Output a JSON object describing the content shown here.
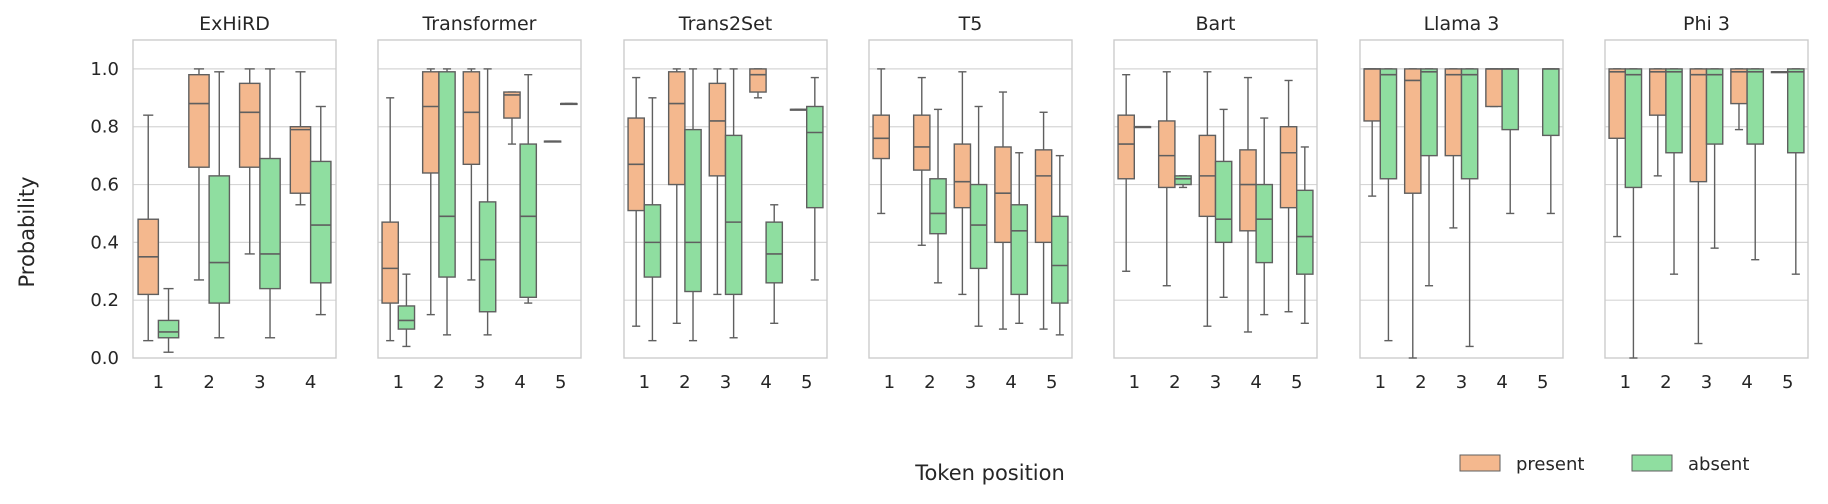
{
  "chart_data": {
    "type": "box",
    "ylabel": "Probability",
    "xlabel": "Token position",
    "ylim": [
      0.0,
      1.1
    ],
    "yticks": [
      "0.0",
      "0.2",
      "0.4",
      "0.6",
      "0.8",
      "1.0"
    ],
    "grid": "horizontal",
    "legend": {
      "placement": "bottom-right",
      "entries": [
        {
          "label": "present",
          "color": "#f4b88e"
        },
        {
          "label": "absent",
          "color": "#8fdea0"
        }
      ]
    },
    "panels": [
      {
        "title": "ExHiRD",
        "positions": [
          "1",
          "2",
          "3",
          "4"
        ],
        "present": [
          [
            0.06,
            0.22,
            0.35,
            0.48,
            0.84
          ],
          [
            0.27,
            0.66,
            0.88,
            0.98,
            1.0
          ],
          [
            0.36,
            0.66,
            0.85,
            0.95,
            1.0
          ],
          [
            0.53,
            0.57,
            0.79,
            0.8,
            0.99
          ]
        ],
        "absent": [
          [
            0.02,
            0.07,
            0.09,
            0.13,
            0.24
          ],
          [
            0.07,
            0.19,
            0.33,
            0.63,
            0.99
          ],
          [
            0.07,
            0.24,
            0.36,
            0.69,
            1.0
          ],
          [
            0.15,
            0.26,
            0.46,
            0.68,
            0.87
          ]
        ]
      },
      {
        "title": "Transformer",
        "positions": [
          "1",
          "2",
          "3",
          "4",
          "5"
        ],
        "present": [
          [
            0.06,
            0.19,
            0.31,
            0.47,
            0.9
          ],
          [
            0.15,
            0.64,
            0.87,
            0.99,
            1.0
          ],
          [
            0.27,
            0.67,
            0.85,
            0.99,
            1.0
          ],
          [
            0.74,
            0.83,
            0.91,
            0.92,
            0.92
          ],
          [
            0.75,
            0.75,
            0.75,
            0.75,
            0.75
          ]
        ],
        "absent": [
          [
            0.04,
            0.1,
            0.13,
            0.18,
            0.29
          ],
          [
            0.08,
            0.28,
            0.49,
            0.99,
            1.0
          ],
          [
            0.08,
            0.16,
            0.34,
            0.54,
            1.0
          ],
          [
            0.19,
            0.21,
            0.49,
            0.74,
            0.98
          ],
          [
            0.88,
            0.88,
            0.88,
            0.88,
            0.88
          ]
        ]
      },
      {
        "title": "Trans2Set",
        "positions": [
          "1",
          "2",
          "3",
          "4",
          "5"
        ],
        "present": [
          [
            0.11,
            0.51,
            0.67,
            0.83,
            0.97
          ],
          [
            0.12,
            0.6,
            0.88,
            0.99,
            1.0
          ],
          [
            0.22,
            0.63,
            0.82,
            0.95,
            1.0
          ],
          [
            0.9,
            0.92,
            0.98,
            1.0,
            1.0
          ],
          [
            0.86,
            0.86,
            0.86,
            0.86,
            0.86
          ]
        ],
        "absent": [
          [
            0.06,
            0.28,
            0.4,
            0.53,
            0.9
          ],
          [
            0.06,
            0.23,
            0.4,
            0.79,
            1.0
          ],
          [
            0.07,
            0.22,
            0.47,
            0.77,
            1.0
          ],
          [
            0.12,
            0.26,
            0.36,
            0.47,
            0.53
          ],
          [
            0.27,
            0.52,
            0.78,
            0.87,
            0.97
          ]
        ]
      },
      {
        "title": "T5",
        "positions": [
          "1",
          "2",
          "3",
          "4",
          "5"
        ],
        "present": [
          [
            0.5,
            0.69,
            0.76,
            0.84,
            1.0
          ],
          [
            0.39,
            0.65,
            0.73,
            0.84,
            0.97
          ],
          [
            0.22,
            0.52,
            0.61,
            0.74,
            0.99
          ],
          [
            0.1,
            0.4,
            0.57,
            0.73,
            0.92
          ],
          [
            0.1,
            0.4,
            0.63,
            0.72,
            0.85
          ]
        ],
        "absent": [
          [],
          [
            0.26,
            0.43,
            0.5,
            0.62,
            0.86
          ],
          [
            0.11,
            0.31,
            0.46,
            0.6,
            0.87
          ],
          [
            0.12,
            0.22,
            0.44,
            0.53,
            0.71
          ],
          [
            0.08,
            0.19,
            0.32,
            0.49,
            0.7
          ]
        ]
      },
      {
        "title": "Bart",
        "positions": [
          "1",
          "2",
          "3",
          "4",
          "5"
        ],
        "present": [
          [
            0.3,
            0.62,
            0.74,
            0.84,
            0.98
          ],
          [
            0.25,
            0.59,
            0.7,
            0.82,
            0.99
          ],
          [
            0.11,
            0.49,
            0.63,
            0.77,
            0.99
          ],
          [
            0.09,
            0.44,
            0.6,
            0.72,
            0.97
          ],
          [
            0.16,
            0.52,
            0.71,
            0.8,
            0.96
          ]
        ],
        "absent": [
          [
            0.8,
            0.8,
            0.8,
            0.8,
            0.8
          ],
          [
            0.59,
            0.6,
            0.62,
            0.63,
            0.63
          ],
          [
            0.21,
            0.4,
            0.48,
            0.68,
            0.86
          ],
          [
            0.15,
            0.33,
            0.48,
            0.6,
            0.83
          ],
          [
            0.12,
            0.29,
            0.42,
            0.58,
            0.73
          ]
        ]
      },
      {
        "title": "Llama 3",
        "positions": [
          "1",
          "2",
          "3",
          "4",
          "5"
        ],
        "present": [
          [
            0.56,
            0.82,
            1.0,
            1.0,
            1.0
          ],
          [
            0.0,
            0.57,
            0.96,
            1.0,
            1.0
          ],
          [
            0.45,
            0.7,
            0.98,
            1.0,
            1.0
          ],
          [
            0.87,
            0.87,
            1.0,
            1.0,
            1.0
          ],
          []
        ],
        "absent": [
          [
            0.06,
            0.62,
            0.98,
            1.0,
            1.0
          ],
          [
            0.25,
            0.7,
            0.99,
            1.0,
            1.0
          ],
          [
            0.04,
            0.62,
            0.98,
            1.0,
            1.0
          ],
          [
            0.5,
            0.79,
            1.0,
            1.0,
            1.0
          ],
          [
            0.5,
            0.77,
            1.0,
            1.0,
            1.0
          ]
        ]
      },
      {
        "title": "Phi 3",
        "positions": [
          "1",
          "2",
          "3",
          "4",
          "5"
        ],
        "present": [
          [
            0.42,
            0.76,
            0.99,
            1.0,
            1.0
          ],
          [
            0.63,
            0.84,
            0.99,
            1.0,
            1.0
          ],
          [
            0.05,
            0.61,
            0.98,
            1.0,
            1.0
          ],
          [
            0.79,
            0.88,
            0.99,
            1.0,
            1.0
          ],
          [
            0.99,
            0.99,
            0.99,
            0.99,
            0.99
          ]
        ],
        "absent": [
          [
            0.0,
            0.59,
            0.98,
            1.0,
            1.0
          ],
          [
            0.29,
            0.71,
            0.99,
            1.0,
            1.0
          ],
          [
            0.38,
            0.74,
            0.98,
            1.0,
            1.0
          ],
          [
            0.34,
            0.74,
            0.99,
            1.0,
            1.0
          ],
          [
            0.29,
            0.71,
            0.99,
            1.0,
            1.0
          ]
        ]
      }
    ]
  }
}
